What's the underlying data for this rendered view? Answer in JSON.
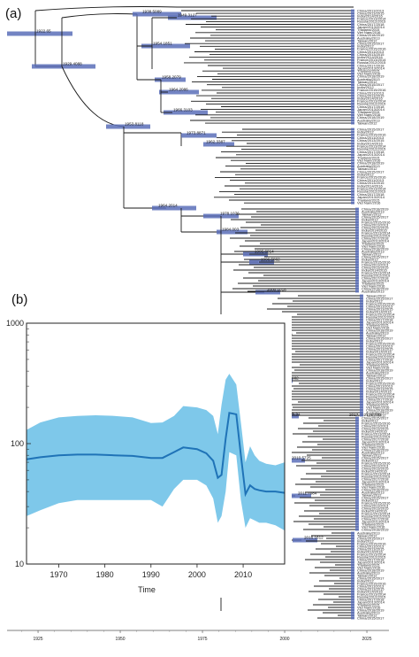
{
  "figure": {
    "panel_a_label": "(a)",
    "panel_b_label": "(b)",
    "tree_color": "#1a1a1a",
    "bar_color": "#5b6fb8",
    "band_color": "#7ec8ea",
    "line_color": "#1f73b7"
  },
  "chart_data": [
    {
      "type": "line",
      "description_label": "tree time axis",
      "xlabel": "",
      "ylabel": "",
      "xlim": [
        1903,
        2025
      ],
      "x_ticks": [
        "1925",
        "1950",
        "1975",
        "2000",
        "2025"
      ],
      "node_labels": [
        {
          "year": 1922.65,
          "label": "1922.65"
        },
        {
          "year": 1929.4088,
          "label": "1929.4088"
        },
        {
          "year": 1938.5089,
          "label": "1938.5089"
        },
        {
          "year": 1949.3127,
          "label": "1949.3127"
        },
        {
          "year": 1954.1851,
          "label": "1954.1851"
        },
        {
          "year": 1958.2079,
          "label": "1958.2079"
        },
        {
          "year": 1953.8118,
          "label": "1953.8118"
        },
        {
          "year": 1964.2086,
          "label": "1964.2086"
        },
        {
          "year": 1966.3103,
          "label": "1966.3103"
        },
        {
          "year": 1965.6414,
          "label": "1965.6414"
        },
        {
          "year": 1973.8871,
          "label": "1973.8871"
        },
        {
          "year": 1962.3387,
          "label": "1962.3387"
        },
        {
          "year": 1964.2014,
          "label": "1964.2014"
        },
        {
          "year": 1978.1076,
          "label": "1978.1076"
        },
        {
          "year": 1984.003,
          "label": "1984.003"
        },
        {
          "year": 1995.6014,
          "label": "1995.6014"
        },
        {
          "year": 1996.5862,
          "label": "1996.5862"
        },
        {
          "year": 2000.1018,
          "label": "2000.1018"
        },
        {
          "year": 2003.4306,
          "label": "2003.4306"
        },
        {
          "year": 2005.7682,
          "label": "2005.7682"
        },
        {
          "year": 2006.51,
          "label": "2006.51"
        },
        {
          "year": 2010.5725,
          "label": "2010.5725"
        },
        {
          "year": 2011.7084,
          "label": "2011.7084"
        },
        {
          "year": 2016.1612,
          "label": "2016.1612"
        }
      ],
      "tip_annotation": "2017.4521 HFMD"
    },
    {
      "type": "area",
      "title": "",
      "xlabel": "Time",
      "ylabel": "",
      "xlim": [
        1963,
        2019
      ],
      "ylim": [
        10,
        1000
      ],
      "y_scale": "log",
      "x_ticks": [
        "1970",
        "1980",
        "1990",
        "2000",
        "2010"
      ],
      "y_ticks": [
        "10",
        "100",
        "1000"
      ],
      "grid": false,
      "series": [
        {
          "x": [
            1963,
            1966,
            1970,
            1974,
            1978,
            1982,
            1986,
            1990,
            1992.5,
            1995,
            1997,
            2000,
            2002,
            2003.5,
            2004.5,
            2005.3,
            2006.2,
            2007,
            2008.5,
            2009.5,
            2010.5,
            2011.5,
            2012.5,
            2013.5,
            2015,
            2017,
            2019
          ],
          "median": [
            74,
            77,
            80,
            81,
            81,
            80,
            79,
            76,
            76,
            85,
            93,
            90,
            83,
            72,
            52,
            55,
            110,
            180,
            175,
            80,
            38,
            45,
            42,
            41,
            40,
            40,
            39
          ],
          "upper": [
            130,
            150,
            165,
            170,
            172,
            170,
            165,
            148,
            150,
            170,
            205,
            200,
            190,
            170,
            120,
            210,
            340,
            380,
            310,
            150,
            70,
            95,
            80,
            72,
            68,
            66,
            70
          ],
          "lower": [
            25,
            28,
            32,
            34,
            34,
            34,
            34,
            34,
            30,
            42,
            50,
            50,
            45,
            35,
            22,
            25,
            40,
            85,
            80,
            34,
            20,
            24,
            23,
            22,
            22,
            21,
            19
          ]
        }
      ]
    }
  ],
  "tips": {
    "left_groups": [
      "China",
      "India",
      "France",
      "Russia",
      "Australia",
      "Japan",
      "Thailand",
      "Viet Nam",
      "Taiwan"
    ],
    "samples": [
      "China/2011/2013",
      "China/2013/2015",
      "India/2014/2016",
      "France/2013/2014",
      "Russia/2012/2015",
      "China/2017/2018",
      "Japan/2013/2014",
      "Thailand/2015",
      "Viet Nam/2016",
      "China/2018/2019",
      "Australia/2013",
      "Taiwan/2012",
      "China/2015/2017",
      "India/2012",
      "France/2015/2016"
    ]
  }
}
